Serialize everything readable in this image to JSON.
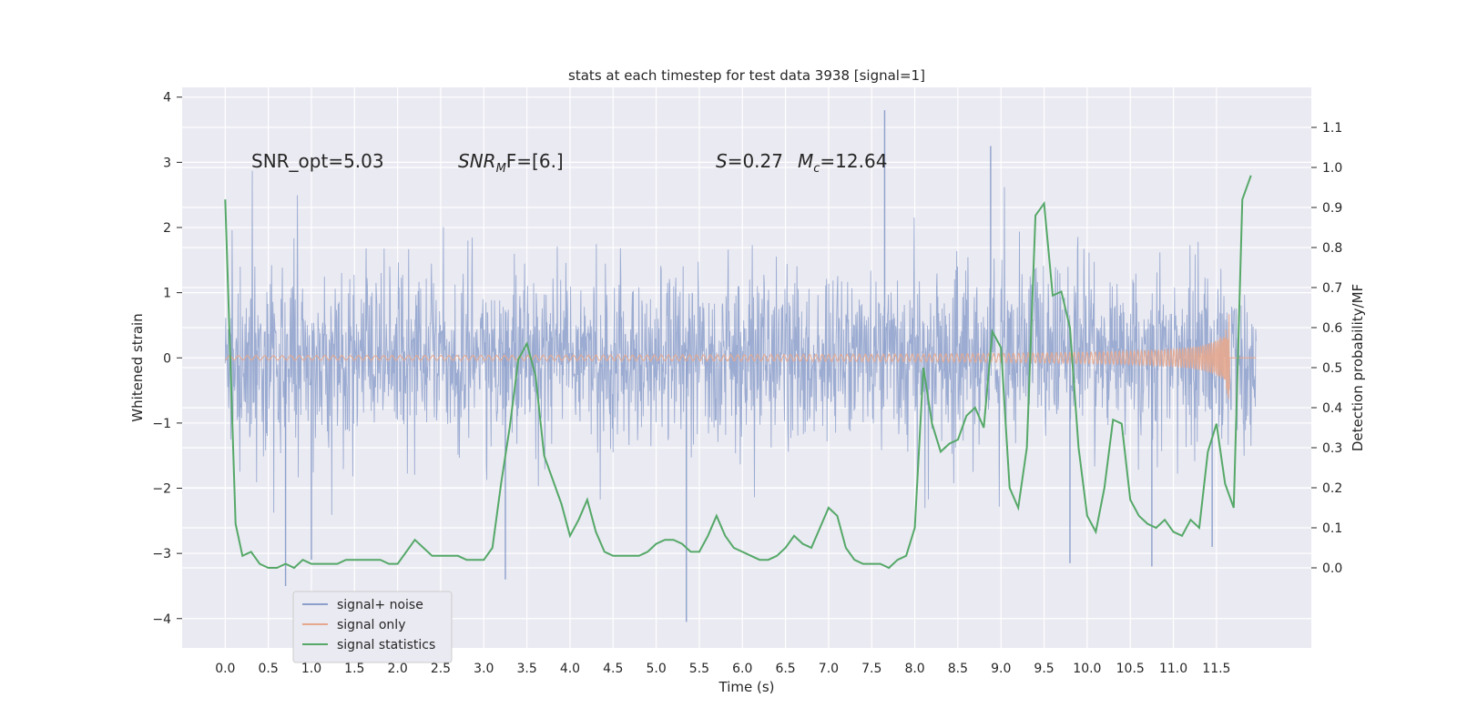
{
  "chart_data": {
    "type": "line",
    "title": "stats at each timestep for test data 3938 [signal=1]",
    "xlabel": "Time (s)",
    "ylabel": "Whitened strain",
    "y2label": "Detection probability/MF",
    "xlim": [
      -0.5,
      12.6
    ],
    "ylim": [
      -4.45,
      4.15
    ],
    "y2lim": [
      -0.2,
      1.2
    ],
    "x_ticks": [
      "0.0",
      "0.5",
      "1.0",
      "1.5",
      "2.0",
      "2.5",
      "3.0",
      "3.5",
      "4.0",
      "4.5",
      "5.0",
      "5.5",
      "6.0",
      "6.5",
      "7.0",
      "7.5",
      "8.0",
      "8.5",
      "9.0",
      "9.5",
      "10.0",
      "10.5",
      "11.0",
      "11.5"
    ],
    "y_ticks": [
      "4",
      "3",
      "2",
      "1",
      "0",
      "−1",
      "−2",
      "−3",
      "−4"
    ],
    "y2_ticks": [
      "1.1",
      "1.0",
      "0.9",
      "0.8",
      "0.7",
      "0.6",
      "0.5",
      "0.4",
      "0.3",
      "0.2",
      "0.1",
      "0.0"
    ],
    "grid": true,
    "legend_position": "lower-left",
    "annotations": {
      "snr_opt": "SNR_opt=5.03",
      "snr_mf_sym": "SNR",
      "snr_mf_sub": "M",
      "snr_mf_rest": "F=[6.]",
      "s_sym": "S",
      "s_val": "=0.27",
      "mc_sym": "M",
      "mc_sub": "c",
      "mc_val": "=12.64"
    },
    "series": [
      {
        "name": "signal+ noise",
        "color": "#8da0cb",
        "axis": "left",
        "t_range": [
          0.0,
          11.96
        ],
        "envelope_typical": [
          -1.3,
          1.3
        ],
        "peaks": [
          {
            "x": 0.7,
            "y": -3.5
          },
          {
            "x": 1.0,
            "y": -3.1
          },
          {
            "x": 3.25,
            "y": -3.4
          },
          {
            "x": 5.35,
            "y": -4.05
          },
          {
            "x": 7.65,
            "y": 3.8
          },
          {
            "x": 8.88,
            "y": 3.25
          },
          {
            "x": 9.8,
            "y": -3.15
          },
          {
            "x": 10.75,
            "y": -3.2
          },
          {
            "x": 11.45,
            "y": -2.9
          }
        ]
      },
      {
        "name": "signal only",
        "color": "#e5a88f",
        "axis": "left",
        "chirp_end": 11.65,
        "amplitude_end": 0.8
      },
      {
        "name": "signal statistics",
        "color": "#55a868",
        "axis": "right",
        "x": [
          0.0,
          0.12,
          0.2,
          0.3,
          0.4,
          0.5,
          0.6,
          0.7,
          0.8,
          0.9,
          1.0,
          1.1,
          1.2,
          1.3,
          1.4,
          1.5,
          1.6,
          1.7,
          1.8,
          1.9,
          2.0,
          2.1,
          2.2,
          2.3,
          2.4,
          2.5,
          2.6,
          2.7,
          2.8,
          2.9,
          3.0,
          3.1,
          3.2,
          3.3,
          3.4,
          3.5,
          3.6,
          3.7,
          3.8,
          3.9,
          4.0,
          4.1,
          4.2,
          4.3,
          4.4,
          4.5,
          4.6,
          4.7,
          4.8,
          4.9,
          5.0,
          5.1,
          5.2,
          5.3,
          5.4,
          5.5,
          5.6,
          5.7,
          5.8,
          5.9,
          6.0,
          6.1,
          6.2,
          6.3,
          6.4,
          6.5,
          6.6,
          6.7,
          6.8,
          6.9,
          7.0,
          7.1,
          7.2,
          7.3,
          7.4,
          7.5,
          7.6,
          7.7,
          7.8,
          7.9,
          8.0,
          8.1,
          8.2,
          8.3,
          8.4,
          8.5,
          8.6,
          8.7,
          8.8,
          8.9,
          9.0,
          9.1,
          9.2,
          9.3,
          9.4,
          9.5,
          9.6,
          9.7,
          9.8,
          9.9,
          10.0,
          10.1,
          10.2,
          10.3,
          10.4,
          10.5,
          10.6,
          10.7,
          10.8,
          10.9,
          11.0,
          11.1,
          11.2,
          11.3,
          11.4,
          11.5,
          11.6,
          11.7,
          11.8,
          11.9
        ],
        "values": [
          0.92,
          0.11,
          0.03,
          0.04,
          0.01,
          0.0,
          0.0,
          0.01,
          0.0,
          0.02,
          0.01,
          0.01,
          0.01,
          0.01,
          0.02,
          0.02,
          0.02,
          0.02,
          0.02,
          0.01,
          0.01,
          0.04,
          0.07,
          0.05,
          0.03,
          0.03,
          0.03,
          0.03,
          0.02,
          0.02,
          0.02,
          0.05,
          0.21,
          0.35,
          0.52,
          0.56,
          0.48,
          0.28,
          0.22,
          0.16,
          0.08,
          0.12,
          0.17,
          0.09,
          0.04,
          0.03,
          0.03,
          0.03,
          0.03,
          0.04,
          0.06,
          0.07,
          0.07,
          0.06,
          0.04,
          0.04,
          0.08,
          0.13,
          0.08,
          0.05,
          0.04,
          0.03,
          0.02,
          0.02,
          0.03,
          0.05,
          0.08,
          0.06,
          0.05,
          0.1,
          0.15,
          0.13,
          0.05,
          0.02,
          0.01,
          0.01,
          0.01,
          0.0,
          0.02,
          0.03,
          0.1,
          0.5,
          0.36,
          0.29,
          0.31,
          0.32,
          0.38,
          0.4,
          0.35,
          0.59,
          0.55,
          0.2,
          0.15,
          0.3,
          0.88,
          0.91,
          0.68,
          0.69,
          0.6,
          0.3,
          0.13,
          0.09,
          0.2,
          0.37,
          0.36,
          0.17,
          0.13,
          0.11,
          0.1,
          0.12,
          0.09,
          0.08,
          0.12,
          0.1,
          0.29,
          0.36,
          0.21,
          0.15,
          0.92,
          0.98
        ]
      }
    ]
  }
}
